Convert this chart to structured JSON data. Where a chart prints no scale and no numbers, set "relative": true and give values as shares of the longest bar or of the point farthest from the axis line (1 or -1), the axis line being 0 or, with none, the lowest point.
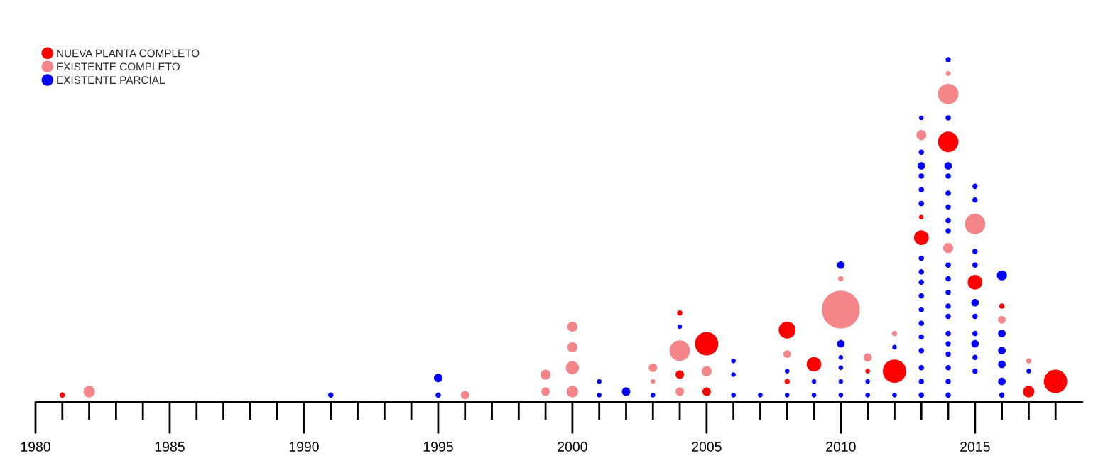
{
  "chart_data": {
    "type": "bubble",
    "relative": true,
    "legend": "top left",
    "grid": false,
    "marker": "circle",
    "xlim": [
      1980,
      2019
    ],
    "xticks": [
      1980,
      {
        "value": 1981,
        "label": null
      },
      {
        "value": 1982,
        "label": null
      },
      {
        "value": 1983,
        "label": null
      },
      {
        "value": 1984,
        "label": null
      },
      1985,
      {
        "value": 1986,
        "label": null
      },
      {
        "value": 1987,
        "label": null
      },
      {
        "value": 1988,
        "label": null
      },
      {
        "value": 1989,
        "label": null
      },
      1990,
      {
        "value": 1991,
        "label": null
      },
      {
        "value": 1992,
        "label": null
      },
      {
        "value": 1993,
        "label": null
      },
      {
        "value": 1994,
        "label": null
      },
      1995,
      {
        "value": 1996,
        "label": null
      },
      {
        "value": 1997,
        "label": null
      },
      {
        "value": 1998,
        "label": null
      },
      {
        "value": 1999,
        "label": null
      },
      2000,
      {
        "value": 2001,
        "label": null
      },
      {
        "value": 2002,
        "label": null
      },
      {
        "value": 2003,
        "label": null
      },
      {
        "value": 2004,
        "label": null
      },
      2005,
      {
        "value": 2006,
        "label": null
      },
      {
        "value": 2007,
        "label": null
      },
      {
        "value": 2008,
        "label": null
      },
      {
        "value": 2009,
        "label": null
      },
      2010,
      {
        "value": 2011,
        "label": null
      },
      {
        "value": 2012,
        "label": null
      },
      {
        "value": 2013,
        "label": null
      },
      {
        "value": 2014,
        "label": null
      },
      2015,
      {
        "value": 2016,
        "label": null
      },
      {
        "value": 2017,
        "label": null
      },
      {
        "value": 2018,
        "label": null
      }
    ],
    "series": [
      {
        "name": "NUEVA PLANTA COMPLETO",
        "color": "#ff0000",
        "x": [
          1981,
          2004,
          2004,
          2005,
          2005,
          2008,
          2008,
          2009,
          2011,
          2012,
          2013,
          2013,
          2014,
          2015,
          2016,
          2017,
          2018
        ],
        "values": [
          0.02,
          0.26,
          0.08,
          0.03,
          0.17,
          0.06,
          0.21,
          0.11,
          0.09,
          0.09,
          0.48,
          0.54,
          0.76,
          0.35,
          0.28,
          0.03,
          0.06
        ],
        "sizes": [
          0.02,
          0.02,
          0.05,
          0.05,
          0.38,
          0.02,
          0.2,
          0.15,
          0.015,
          0.38,
          0.15,
          0.015,
          0.29,
          0.15,
          0.02,
          0.09,
          0.38
        ]
      },
      {
        "name": "EXISTENTE COMPLETO",
        "color": "#f4868a",
        "x": [
          1982,
          1996,
          1999,
          1999,
          2000,
          2000,
          2000,
          2000,
          2003,
          2003,
          2004,
          2004,
          2005,
          2008,
          2010,
          2010,
          2011,
          2012,
          2013,
          2014,
          2014,
          2014,
          2015,
          2016,
          2017
        ],
        "values": [
          0.03,
          0.02,
          0.03,
          0.08,
          0.03,
          0.1,
          0.16,
          0.22,
          0.06,
          0.1,
          0.03,
          0.15,
          0.09,
          0.14,
          0.27,
          0.36,
          0.13,
          0.2,
          0.78,
          0.45,
          0.9,
          0.96,
          0.52,
          0.24,
          0.12
        ],
        "sizes": [
          0.09,
          0.05,
          0.05,
          0.07,
          0.09,
          0.12,
          0.07,
          0.07,
          0.015,
          0.05,
          0.05,
          0.29,
          0.07,
          0.04,
          1,
          0.02,
          0.05,
          0.02,
          0.07,
          0.07,
          0.29,
          0.015,
          0.29,
          0.04,
          0.02
        ]
      },
      {
        "name": "EXISTENTE PARCIAL",
        "color": "#0000ff",
        "x": [
          1991,
          1995,
          1995,
          2001,
          2001,
          2002,
          2003,
          2004,
          2006,
          2006,
          2006,
          2007,
          2008,
          2008,
          2009,
          2009,
          2010,
          2010,
          2010,
          2010,
          2010,
          2010,
          2011,
          2011,
          2012,
          2012,
          2013,
          2013,
          2013,
          2013,
          2013,
          2013,
          2013,
          2013,
          2013,
          2013,
          2013,
          2013,
          2013,
          2013,
          2013,
          2013,
          2013,
          2014,
          2014,
          2014,
          2014,
          2014,
          2014,
          2014,
          2014,
          2014,
          2014,
          2014,
          2014,
          2014,
          2014,
          2014,
          2014,
          2014,
          2014,
          2014,
          2015,
          2015,
          2015,
          2015,
          2015,
          2015,
          2015,
          2015,
          2015,
          2015,
          2016,
          2016,
          2016,
          2016,
          2016,
          2016,
          2017
        ],
        "values": [
          0.02,
          0.02,
          0.07,
          0.02,
          0.06,
          0.03,
          0.02,
          0.22,
          0.02,
          0.08,
          0.12,
          0.02,
          0.02,
          0.09,
          0.06,
          0.02,
          0.02,
          0.06,
          0.1,
          0.13,
          0.17,
          0.4,
          0.02,
          0.06,
          0.02,
          0.16,
          0.02,
          0.06,
          0.1,
          0.15,
          0.19,
          0.23,
          0.27,
          0.31,
          0.35,
          0.38,
          0.42,
          0.58,
          0.62,
          0.66,
          0.69,
          0.73,
          0.83,
          0.02,
          0.06,
          0.1,
          0.14,
          0.17,
          0.2,
          0.25,
          0.28,
          0.32,
          0.36,
          0.4,
          0.5,
          0.53,
          0.57,
          0.61,
          0.66,
          0.69,
          0.83,
          1,
          0.09,
          0.13,
          0.17,
          0.2,
          0.25,
          0.29,
          0.4,
          0.44,
          0.59,
          0.63,
          0.02,
          0.06,
          0.11,
          0.15,
          0.2,
          0.37,
          0.09
        ],
        "sizes": [
          0.02,
          0.02,
          0.05,
          0.015,
          0.015,
          0.05,
          0.015,
          0.015,
          0.015,
          0.015,
          0.015,
          0.015,
          0.015,
          0.015,
          0.015,
          0.015,
          0.015,
          0.015,
          0.015,
          0.015,
          0.04,
          0.04,
          0.015,
          0.015,
          0.015,
          0.015,
          0.02,
          0.02,
          0.02,
          0.02,
          0.02,
          0.02,
          0.02,
          0.02,
          0.02,
          0.02,
          0.02,
          0.02,
          0.02,
          0.02,
          0.04,
          0.02,
          0.015,
          0.02,
          0.02,
          0.02,
          0.02,
          0.02,
          0.02,
          0.02,
          0.02,
          0.02,
          0.02,
          0.02,
          0.02,
          0.02,
          0.02,
          0.02,
          0.02,
          0.04,
          0.02,
          0.02,
          0.02,
          0.02,
          0.04,
          0.02,
          0.02,
          0.04,
          0.02,
          0.02,
          0.02,
          0.02,
          0.02,
          0.04,
          0.04,
          0.04,
          0.04,
          0.07,
          0.015
        ]
      }
    ]
  }
}
